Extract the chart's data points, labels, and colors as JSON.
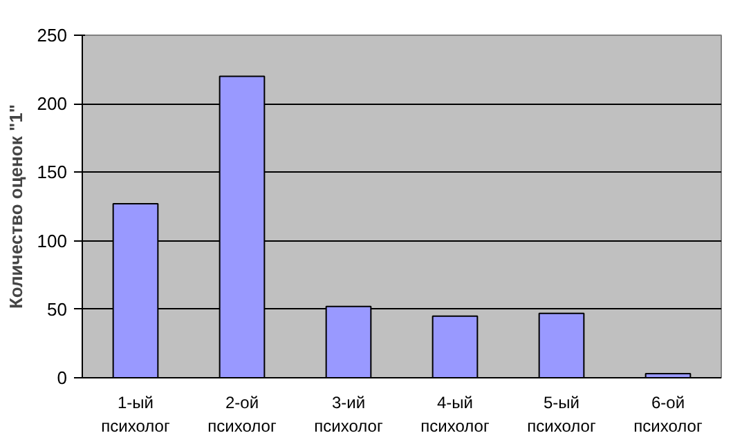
{
  "chart_data": {
    "type": "bar",
    "ylabel": "Количество оценок \"1\"",
    "categories": [
      "1-ый\nпсихолог",
      "2-ой\nпсихолог",
      "3-ий\nпсихолог",
      "4-ый\nпсихолог",
      "5-ый\nпсихолог",
      "6-ой\nпсихолог"
    ],
    "values": [
      127,
      220,
      52,
      45,
      47,
      3
    ],
    "color": "#9999ff",
    "ylim": [
      0,
      250
    ],
    "yticks": [
      0,
      50,
      100,
      150,
      200,
      250
    ],
    "grid": "y"
  }
}
